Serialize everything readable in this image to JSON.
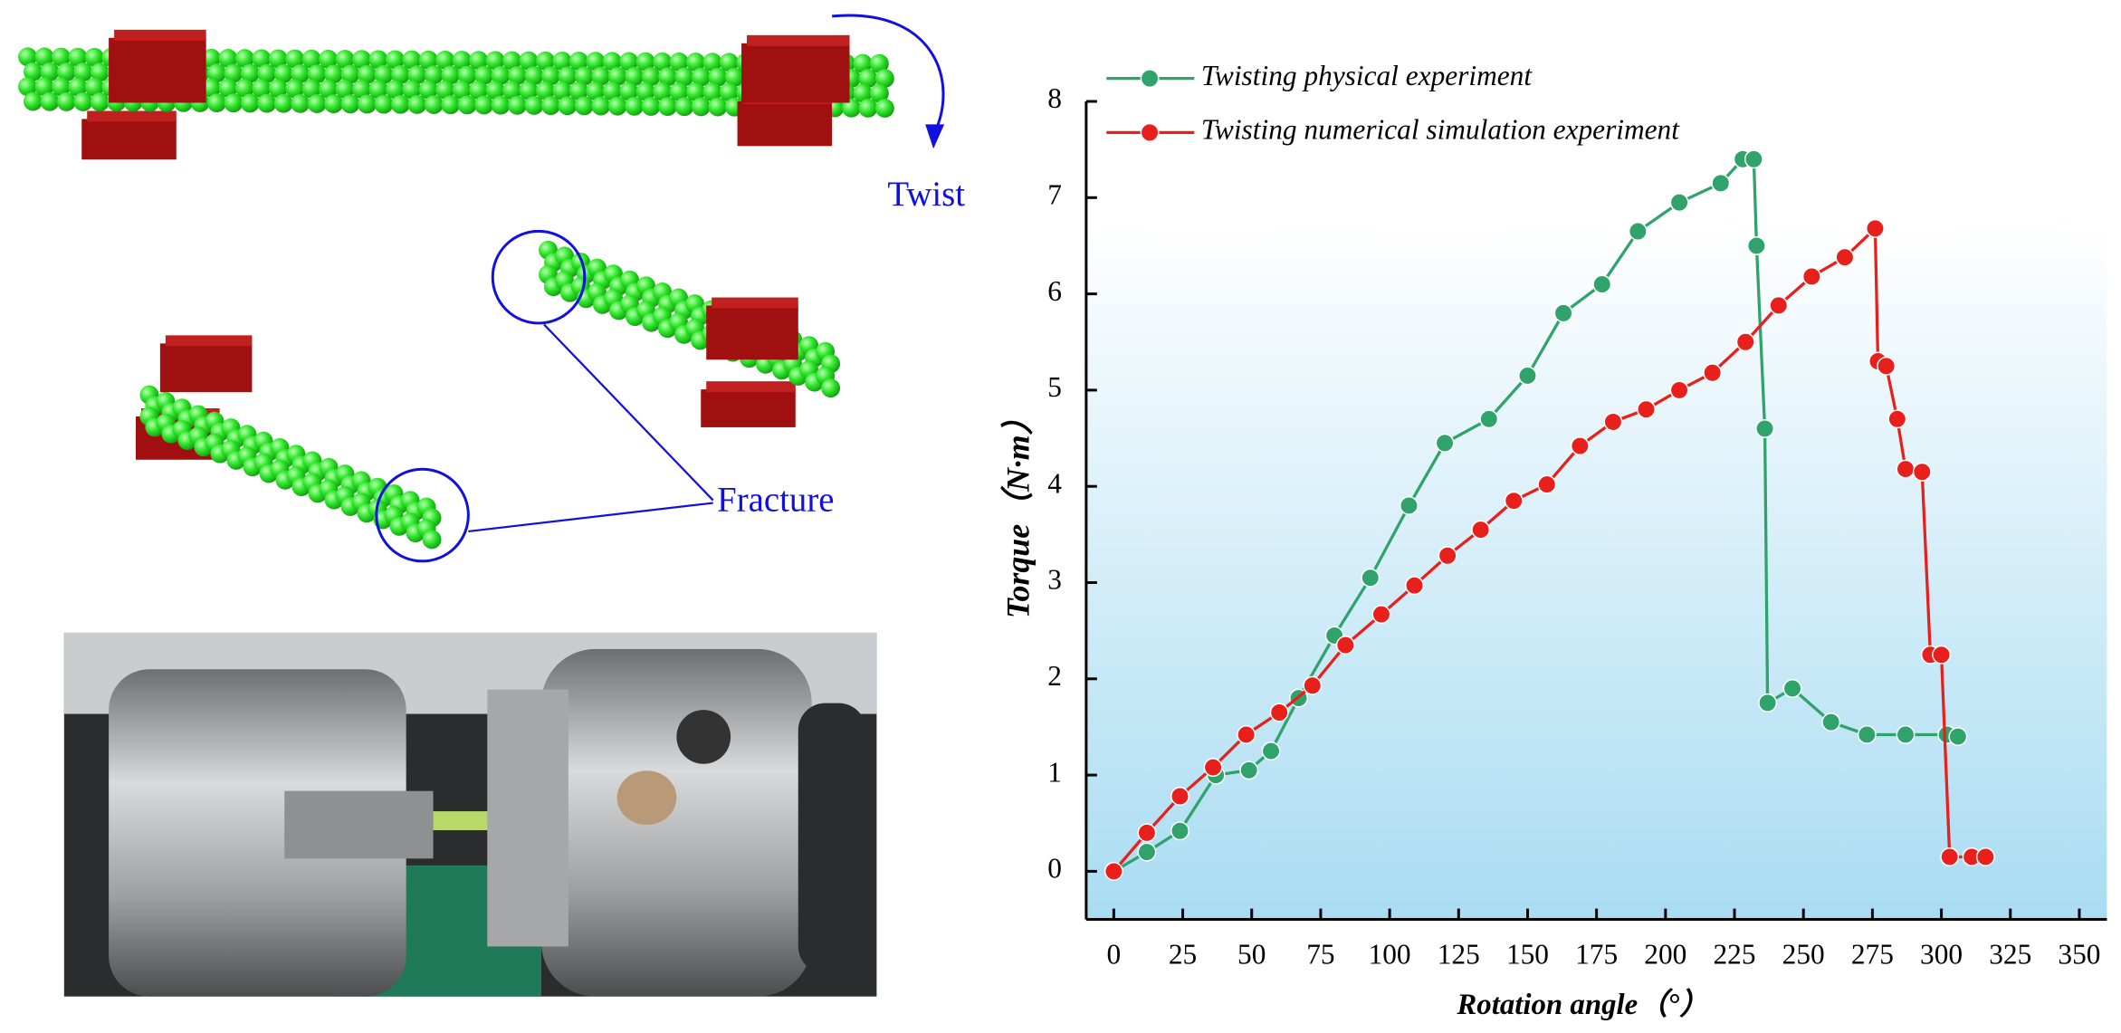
{
  "annotations": {
    "twist": "Twist",
    "fracture": "Fracture"
  },
  "chart_data": {
    "type": "line",
    "xlabel": "Rotation angle（°）",
    "ylabel": "Torque（N·m）",
    "xlim": [
      -10,
      360
    ],
    "ylim": [
      -0.5,
      8
    ],
    "xticks": [
      0,
      25,
      50,
      75,
      100,
      125,
      150,
      175,
      200,
      225,
      250,
      275,
      300,
      325,
      350
    ],
    "yticks": [
      0,
      1,
      2,
      3,
      4,
      5,
      6,
      7,
      8
    ],
    "legend": "top-left",
    "series": [
      {
        "name": "Twisting physical experiment",
        "color": "#2fa36b",
        "x": [
          0,
          12,
          24,
          37,
          49,
          57,
          67,
          80,
          93,
          107,
          120,
          136,
          150,
          163,
          177,
          190,
          205,
          220,
          228,
          232,
          233,
          236,
          237,
          246,
          260,
          273,
          287,
          302,
          306
        ],
        "values": [
          0,
          0.2,
          0.42,
          1.0,
          1.05,
          1.25,
          1.8,
          2.45,
          3.05,
          3.8,
          4.45,
          4.7,
          5.15,
          5.8,
          6.1,
          6.65,
          6.95,
          7.15,
          7.4,
          7.4,
          6.5,
          4.6,
          1.75,
          1.9,
          1.55,
          1.42,
          1.42,
          1.42,
          1.4
        ]
      },
      {
        "name": "Twisting numerical simulation experiment",
        "color": "#e8201c",
        "x": [
          0,
          12,
          24,
          36,
          48,
          60,
          72,
          84,
          97,
          109,
          121,
          133,
          145,
          157,
          169,
          181,
          193,
          205,
          217,
          229,
          241,
          253,
          265,
          276,
          277,
          280,
          284,
          287,
          293,
          296,
          300,
          303,
          311,
          316
        ],
        "values": [
          0,
          0.4,
          0.78,
          1.08,
          1.42,
          1.65,
          1.93,
          2.35,
          2.67,
          2.97,
          3.28,
          3.55,
          3.85,
          4.02,
          4.42,
          4.67,
          4.8,
          5.0,
          5.18,
          5.5,
          5.88,
          6.18,
          6.38,
          6.68,
          5.3,
          5.25,
          4.7,
          4.18,
          4.15,
          2.25,
          2.25,
          0.15,
          0.15,
          0.15
        ]
      }
    ]
  }
}
